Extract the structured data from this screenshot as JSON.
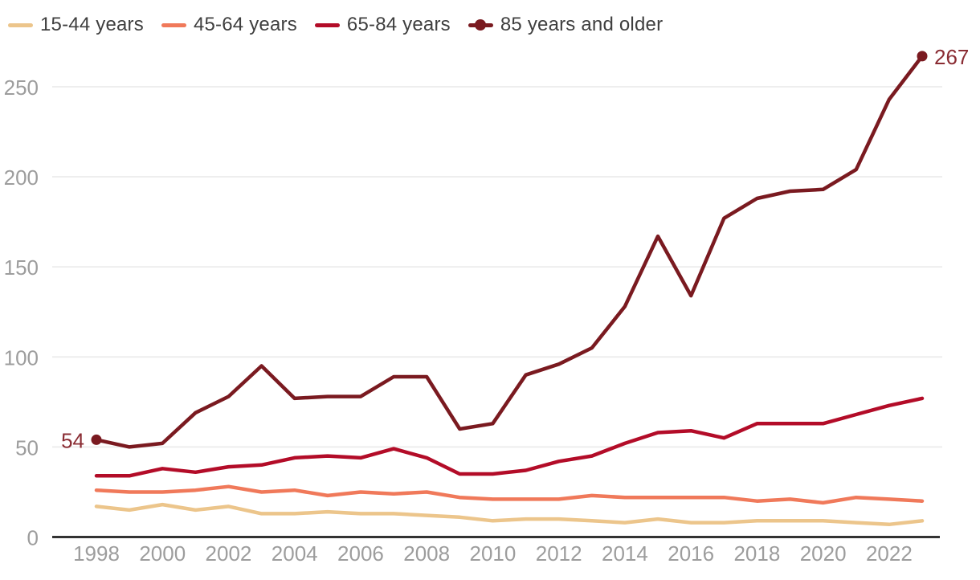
{
  "chart_data": {
    "type": "line",
    "title": "",
    "xlabel": "",
    "ylabel": "",
    "x": [
      1998,
      1999,
      2000,
      2001,
      2002,
      2003,
      2004,
      2005,
      2006,
      2007,
      2008,
      2009,
      2010,
      2011,
      2012,
      2013,
      2014,
      2015,
      2016,
      2017,
      2018,
      2019,
      2020,
      2021,
      2022,
      2023
    ],
    "series": [
      {
        "name": "15-44 years",
        "color": "#ecc58b",
        "values": [
          17,
          15,
          18,
          15,
          17,
          13,
          13,
          14,
          13,
          13,
          12,
          11,
          9,
          10,
          10,
          9,
          8,
          10,
          8,
          8,
          9,
          9,
          9,
          8,
          7,
          9
        ]
      },
      {
        "name": "45-64 years",
        "color": "#f0795a",
        "values": [
          26,
          25,
          25,
          26,
          28,
          25,
          26,
          23,
          25,
          24,
          25,
          22,
          21,
          21,
          21,
          23,
          22,
          22,
          22,
          22,
          20,
          21,
          19,
          22,
          21,
          20
        ]
      },
      {
        "name": "65-84 years",
        "color": "#b30c28",
        "values": [
          34,
          34,
          38,
          36,
          39,
          40,
          44,
          45,
          44,
          49,
          44,
          35,
          35,
          37,
          42,
          45,
          52,
          58,
          59,
          55,
          63,
          63,
          63,
          68,
          73,
          77
        ]
      },
      {
        "name": "85 years and older",
        "color": "#7a1a20",
        "marker_endpoints": true,
        "values": [
          54,
          50,
          52,
          69,
          78,
          95,
          77,
          78,
          78,
          89,
          89,
          60,
          63,
          90,
          96,
          105,
          128,
          167,
          134,
          177,
          188,
          192,
          193,
          204,
          243,
          267
        ]
      }
    ],
    "ylim": [
      0,
      280
    ],
    "yticks": [
      0,
      50,
      100,
      150,
      200,
      250
    ],
    "xticks": [
      1998,
      2000,
      2002,
      2004,
      2006,
      2008,
      2010,
      2012,
      2014,
      2016,
      2018,
      2020,
      2022
    ],
    "grid": "horizontal",
    "legend_position": "top-left",
    "annotations": [
      {
        "text": "54",
        "x": 1998,
        "y": 54,
        "side": "left",
        "color": "#8a2c33"
      },
      {
        "text": "267",
        "x": 2023,
        "y": 267,
        "side": "right",
        "color": "#8a2c33"
      }
    ]
  },
  "style_colors": {
    "grid": "#e9e9e9",
    "axis": "#333333",
    "tick_label": "#9d9d9d",
    "legend_text": "#3f3f3f",
    "background": "#ffffff"
  }
}
